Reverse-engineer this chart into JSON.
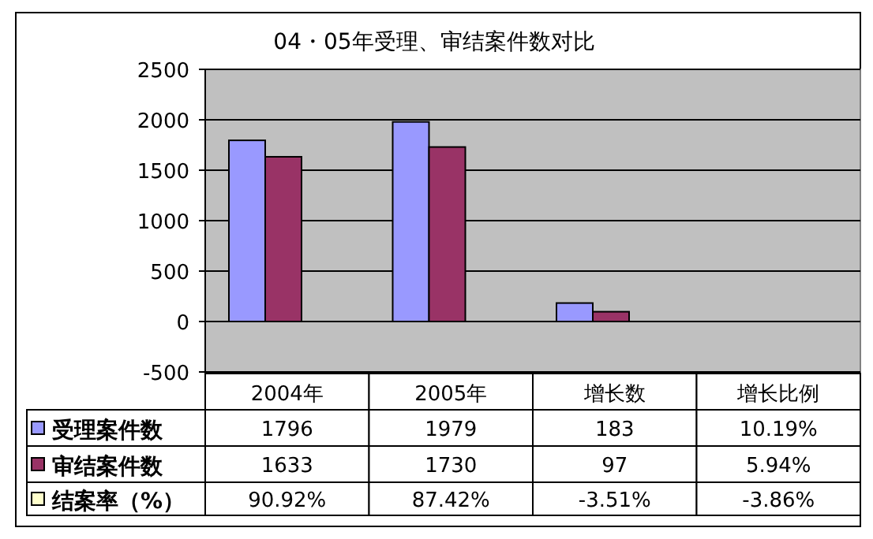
{
  "chart_data": {
    "type": "bar",
    "title": "04・05年受理、审结案件数对比",
    "categories": [
      "2004年",
      "2005年",
      "增长数",
      "增长比例"
    ],
    "series": [
      {
        "name": "受理案件数",
        "color": "#9999ff",
        "values": [
          1796,
          1979,
          183,
          0.1019
        ],
        "value_labels": [
          "1796",
          "1979",
          "183",
          "10.19%"
        ]
      },
      {
        "name": "审结案件数",
        "color": "#993366",
        "values": [
          1633,
          1730,
          97,
          0.0594
        ],
        "value_labels": [
          "1633",
          "1730",
          "97",
          "5.94%"
        ]
      },
      {
        "name": "结案率（%）",
        "color": "#ffffcc",
        "values": [
          0.9092,
          0.8742,
          -0.0351,
          -0.0386
        ],
        "value_labels": [
          "90.92%",
          "87.42%",
          "-3.51%",
          "-3.86%"
        ]
      }
    ],
    "ylim": [
      -500,
      2500
    ],
    "yticks": [
      -500,
      0,
      500,
      1000,
      1500,
      2000,
      2500
    ],
    "grid": "y",
    "legend": "left"
  }
}
